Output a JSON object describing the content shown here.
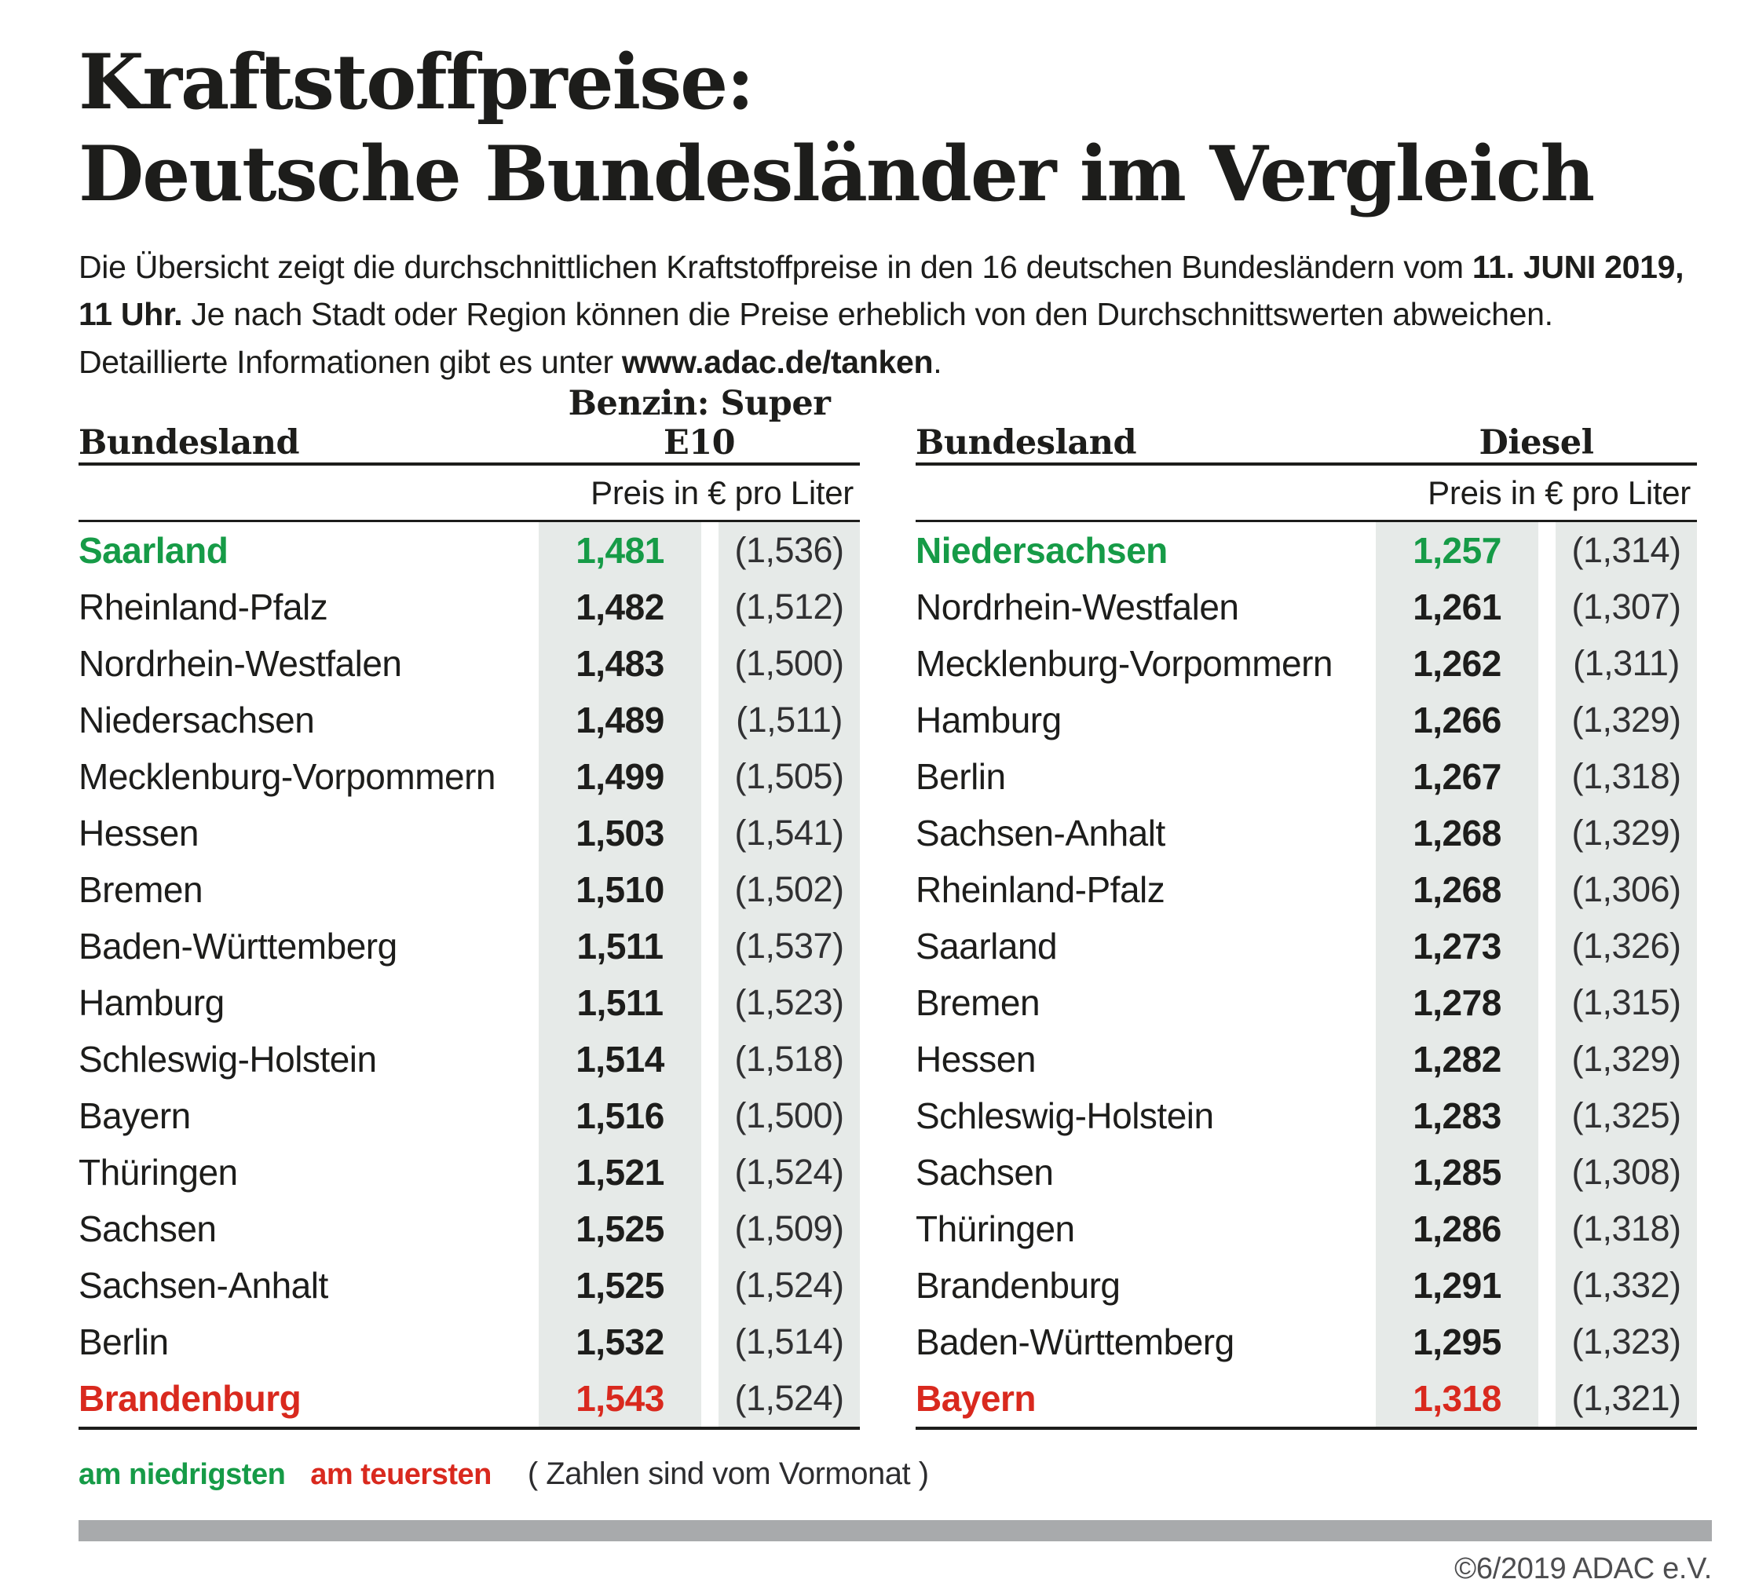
{
  "title": {
    "line1": "Kraftstoffpreise:",
    "line2": "Deutsche Bundesländer im Vergleich"
  },
  "intro": {
    "line1_pre": "Die Übersicht zeigt die durchschnittlichen Kraftstoffpreise in den 16 deutschen Bundesländern vom ",
    "line1_bold": "11. JUNI 2019,",
    "line2_bold": "11 Uhr.",
    "line2_post": " Je nach Stadt oder Region können die Preise erheblich von den Durchschnittswerten abweichen.",
    "line3_pre": "Detaillierte Informationen gibt es unter ",
    "line3_bold": "www.adac.de/tanken",
    "line3_post": "."
  },
  "colors": {
    "green": "#169b47",
    "red": "#d9291e",
    "cell_bg": "#e6eae8",
    "footer_bar": "#a8aaac"
  },
  "chart_data": [
    {
      "type": "table",
      "title": "Benzin: Super E10",
      "land_header": "Bundesland",
      "fuel_header": "Benzin: Super E10",
      "subheader": "Preis in € pro Liter",
      "unit": "EUR pro Liter",
      "note": "Werte in Klammern sind vom Vormonat",
      "rows": [
        {
          "land": "Saarland",
          "price": "1,481",
          "prev": "(1,536)",
          "highlight": "green"
        },
        {
          "land": "Rheinland-Pfalz",
          "price": "1,482",
          "prev": "(1,512)",
          "highlight": null
        },
        {
          "land": "Nordrhein-Westfalen",
          "price": "1,483",
          "prev": "(1,500)",
          "highlight": null
        },
        {
          "land": "Niedersachsen",
          "price": "1,489",
          "prev": "(1,511)",
          "highlight": null
        },
        {
          "land": "Mecklenburg-Vorpommern",
          "price": "1,499",
          "prev": "(1,505)",
          "highlight": null
        },
        {
          "land": "Hessen",
          "price": "1,503",
          "prev": "(1,541)",
          "highlight": null
        },
        {
          "land": "Bremen",
          "price": "1,510",
          "prev": "(1,502)",
          "highlight": null
        },
        {
          "land": "Baden-Württemberg",
          "price": "1,511",
          "prev": "(1,537)",
          "highlight": null
        },
        {
          "land": "Hamburg",
          "price": "1,511",
          "prev": "(1,523)",
          "highlight": null
        },
        {
          "land": "Schleswig-Holstein",
          "price": "1,514",
          "prev": "(1,518)",
          "highlight": null
        },
        {
          "land": "Bayern",
          "price": "1,516",
          "prev": "(1,500)",
          "highlight": null
        },
        {
          "land": "Thüringen",
          "price": "1,521",
          "prev": "(1,524)",
          "highlight": null
        },
        {
          "land": "Sachsen",
          "price": "1,525",
          "prev": "(1,509)",
          "highlight": null
        },
        {
          "land": "Sachsen-Anhalt",
          "price": "1,525",
          "prev": "(1,524)",
          "highlight": null
        },
        {
          "land": "Berlin",
          "price": "1,532",
          "prev": "(1,514)",
          "highlight": null
        },
        {
          "land": "Brandenburg",
          "price": "1,543",
          "prev": "(1,524)",
          "highlight": "red"
        }
      ]
    },
    {
      "type": "table",
      "title": "Diesel",
      "land_header": "Bundesland",
      "fuel_header": "Diesel",
      "subheader": "Preis in € pro Liter",
      "unit": "EUR pro Liter",
      "note": "Werte in Klammern sind vom Vormonat",
      "rows": [
        {
          "land": "Niedersachsen",
          "price": "1,257",
          "prev": "(1,314)",
          "highlight": "green"
        },
        {
          "land": "Nordrhein-Westfalen",
          "price": "1,261",
          "prev": "(1,307)",
          "highlight": null
        },
        {
          "land": "Mecklenburg-Vorpommern",
          "price": "1,262",
          "prev": "(1,311)",
          "highlight": null
        },
        {
          "land": "Hamburg",
          "price": "1,266",
          "prev": "(1,329)",
          "highlight": null
        },
        {
          "land": "Berlin",
          "price": "1,267",
          "prev": "(1,318)",
          "highlight": null
        },
        {
          "land": "Sachsen-Anhalt",
          "price": "1,268",
          "prev": "(1,329)",
          "highlight": null
        },
        {
          "land": "Rheinland-Pfalz",
          "price": "1,268",
          "prev": "(1,306)",
          "highlight": null
        },
        {
          "land": "Saarland",
          "price": "1,273",
          "prev": "(1,326)",
          "highlight": null
        },
        {
          "land": "Bremen",
          "price": "1,278",
          "prev": "(1,315)",
          "highlight": null
        },
        {
          "land": "Hessen",
          "price": "1,282",
          "prev": "(1,329)",
          "highlight": null
        },
        {
          "land": "Schleswig-Holstein",
          "price": "1,283",
          "prev": "(1,325)",
          "highlight": null
        },
        {
          "land": "Sachsen",
          "price": "1,285",
          "prev": "(1,308)",
          "highlight": null
        },
        {
          "land": "Thüringen",
          "price": "1,286",
          "prev": "(1,318)",
          "highlight": null
        },
        {
          "land": "Brandenburg",
          "price": "1,291",
          "prev": "(1,332)",
          "highlight": null
        },
        {
          "land": "Baden-Württemberg",
          "price": "1,295",
          "prev": "(1,323)",
          "highlight": null
        },
        {
          "land": "Bayern",
          "price": "1,318",
          "prev": "(1,321)",
          "highlight": "red"
        }
      ]
    }
  ],
  "legend": {
    "lowest": "am niedrigsten",
    "highest": "am teuersten",
    "note": "( Zahlen sind vom Vormonat )"
  },
  "footer": {
    "copyright": "©6/2019 ADAC e.V."
  }
}
